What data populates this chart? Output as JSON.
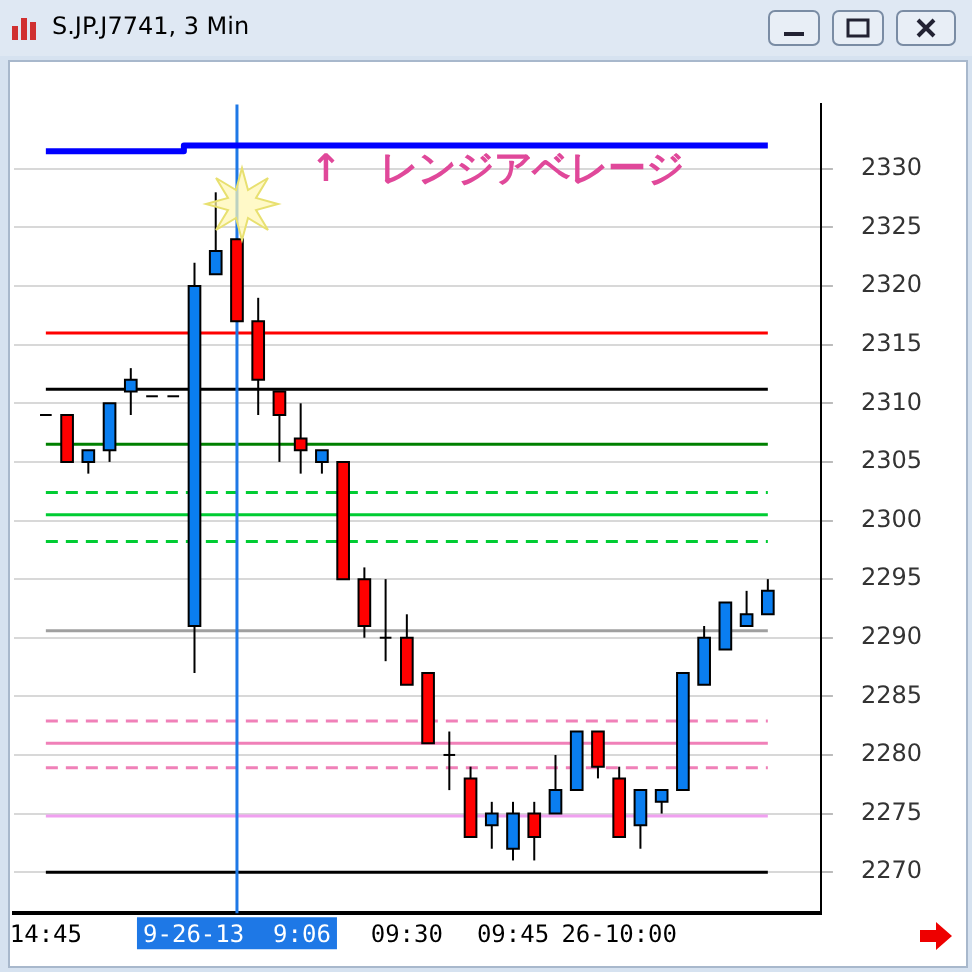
{
  "chart_data": {
    "type": "candlestick",
    "title": "S.JP.J7741, 3 Min",
    "categories": [
      null,
      "14:45",
      null,
      null,
      null,
      null,
      null,
      null,
      null,
      null,
      "9-26-13  9:06",
      null,
      null,
      null,
      null,
      null,
      null,
      null,
      "09:30",
      null,
      null,
      null,
      null,
      "09:45",
      null,
      null,
      null,
      null,
      "26-10:00",
      null,
      null,
      null,
      null,
      null,
      null,
      null,
      null,
      null
    ],
    "ohlc": [
      null,
      [
        2309,
        2309,
        2309,
        2309
      ],
      [
        2309,
        2309,
        2305,
        2305
      ],
      [
        2305,
        2306,
        2304,
        2306
      ],
      [
        2306,
        2310,
        2305,
        2310
      ],
      [
        2311,
        2313,
        2309,
        2312
      ],
      [
        2310.6,
        2310.6,
        2310.6,
        2310.6
      ],
      [
        2310.6,
        2310.6,
        2310.6,
        2310.6
      ],
      [
        2291,
        2322,
        2287,
        2320
      ],
      [
        2321,
        2328,
        2321,
        2323
      ],
      [
        2324,
        2324,
        2317,
        2317
      ],
      [
        2317,
        2319,
        2309,
        2312
      ],
      [
        2311,
        2311,
        2305,
        2309
      ],
      [
        2307,
        2310,
        2304,
        2306
      ],
      [
        2305,
        2306,
        2304,
        2306
      ],
      [
        2305,
        2305,
        2295,
        2295
      ],
      [
        2295,
        2296,
        2290,
        2291
      ],
      [
        2290,
        2295,
        2288,
        2290
      ],
      [
        2290,
        2292,
        2286,
        2286
      ],
      [
        2287,
        2287,
        2281,
        2281
      ],
      [
        2280,
        2282,
        2277,
        2280
      ],
      [
        2278,
        2279,
        2273,
        2273
      ],
      [
        2274,
        2276,
        2272,
        2275
      ],
      [
        2272,
        2276,
        2271,
        2275
      ],
      [
        2275,
        2276,
        2271,
        2273
      ],
      [
        2275,
        2280,
        2275,
        2277
      ],
      [
        2277,
        2282,
        2277,
        2282
      ],
      [
        2282,
        2282,
        2278,
        2279
      ],
      [
        2278,
        2279,
        2273,
        2273
      ],
      [
        2274,
        2277,
        2272,
        2277
      ],
      [
        2276,
        2277,
        2275,
        2277
      ],
      [
        2277,
        2287,
        2277,
        2287
      ],
      [
        2286,
        2291,
        2286,
        2290
      ],
      [
        2289,
        2293,
        2289,
        2293
      ],
      [
        2291,
        2294,
        2291,
        2292
      ],
      [
        2292,
        2295,
        2292,
        2294
      ],
      null,
      null
    ],
    "colors": [
      null,
      "#000000",
      "#ff0000",
      "#0a7ef0",
      "#0a7ef0",
      "#0a7ef0",
      "#000000",
      "#000000",
      "#0a7ef0",
      "#0a7ef0",
      "#ff0000",
      "#ff0000",
      "#ff0000",
      "#ff0000",
      "#0a7ef0",
      "#ff0000",
      "#ff0000",
      "#000000",
      "#ff0000",
      "#ff0000",
      "#000000",
      "#ff0000",
      "#0a7ef0",
      "#0a7ef0",
      "#ff0000",
      "#0a7ef0",
      "#0a7ef0",
      "#ff0000",
      "#ff0000",
      "#0a7ef0",
      "#0a7ef0",
      "#0a7ef0",
      "#0a7ef0",
      "#0a7ef0",
      "#0a7ef0",
      "#0a7ef0",
      null,
      null
    ],
    "series": [
      {
        "type": "step",
        "color": "#0000ff",
        "values": [
          null,
          2331.5,
          2331.5,
          2331.5,
          2331.5,
          2331.5,
          2331.5,
          2331.5,
          2332,
          2332,
          2332,
          2332,
          2332,
          2332,
          2332,
          2332,
          2332,
          2332,
          2332,
          2332,
          2332,
          2332,
          2332,
          2332,
          2332,
          2332,
          2332,
          2332,
          2332,
          2332,
          2332,
          2332,
          2332,
          2332,
          2332,
          2332,
          null,
          null
        ]
      }
    ],
    "ylim": [
      2266.5,
      2335.5
    ],
    "yticks": [
      2270,
      2275,
      2280,
      2285,
      2290,
      2295,
      2300,
      2305,
      2310,
      2315,
      2320,
      2325,
      2330
    ],
    "grid": "y",
    "ref_lines": [
      {
        "axis": "y",
        "value": 2316,
        "color": "#ff0000",
        "line_style": "solid"
      },
      {
        "axis": "y",
        "value": 2311.2,
        "color": "#000000",
        "line_style": "solid"
      },
      {
        "axis": "y",
        "value": 2306.5,
        "color": "#008000",
        "line_style": "solid"
      },
      {
        "axis": "y",
        "value": 2302.4,
        "color": "#00cc33",
        "line_style": "dashed"
      },
      {
        "axis": "y",
        "value": 2300.5,
        "color": "#00cc33",
        "line_style": "solid"
      },
      {
        "axis": "y",
        "value": 2298.2,
        "color": "#00cc33",
        "line_style": "dashed"
      },
      {
        "axis": "y",
        "value": 2290.6,
        "color": "#a0a0a0",
        "line_style": "solid"
      },
      {
        "axis": "y",
        "value": 2282.9,
        "color": "#f080b8",
        "line_style": "dashed"
      },
      {
        "axis": "y",
        "value": 2281,
        "color": "#f080b8",
        "line_style": "solid"
      },
      {
        "axis": "y",
        "value": 2278.9,
        "color": "#f080b8",
        "line_style": "dashed"
      },
      {
        "axis": "y",
        "value": 2274.8,
        "color": "#f0a0f0",
        "line_style": "solid"
      },
      {
        "axis": "y",
        "value": 2270,
        "color": "#000000",
        "line_style": "solid"
      },
      {
        "axis": "x",
        "value": "9-26-13  9:06",
        "color": "#1e78e6",
        "line_style": "solid"
      }
    ],
    "annotations": [
      "↑　レンジアベレージ"
    ]
  }
}
